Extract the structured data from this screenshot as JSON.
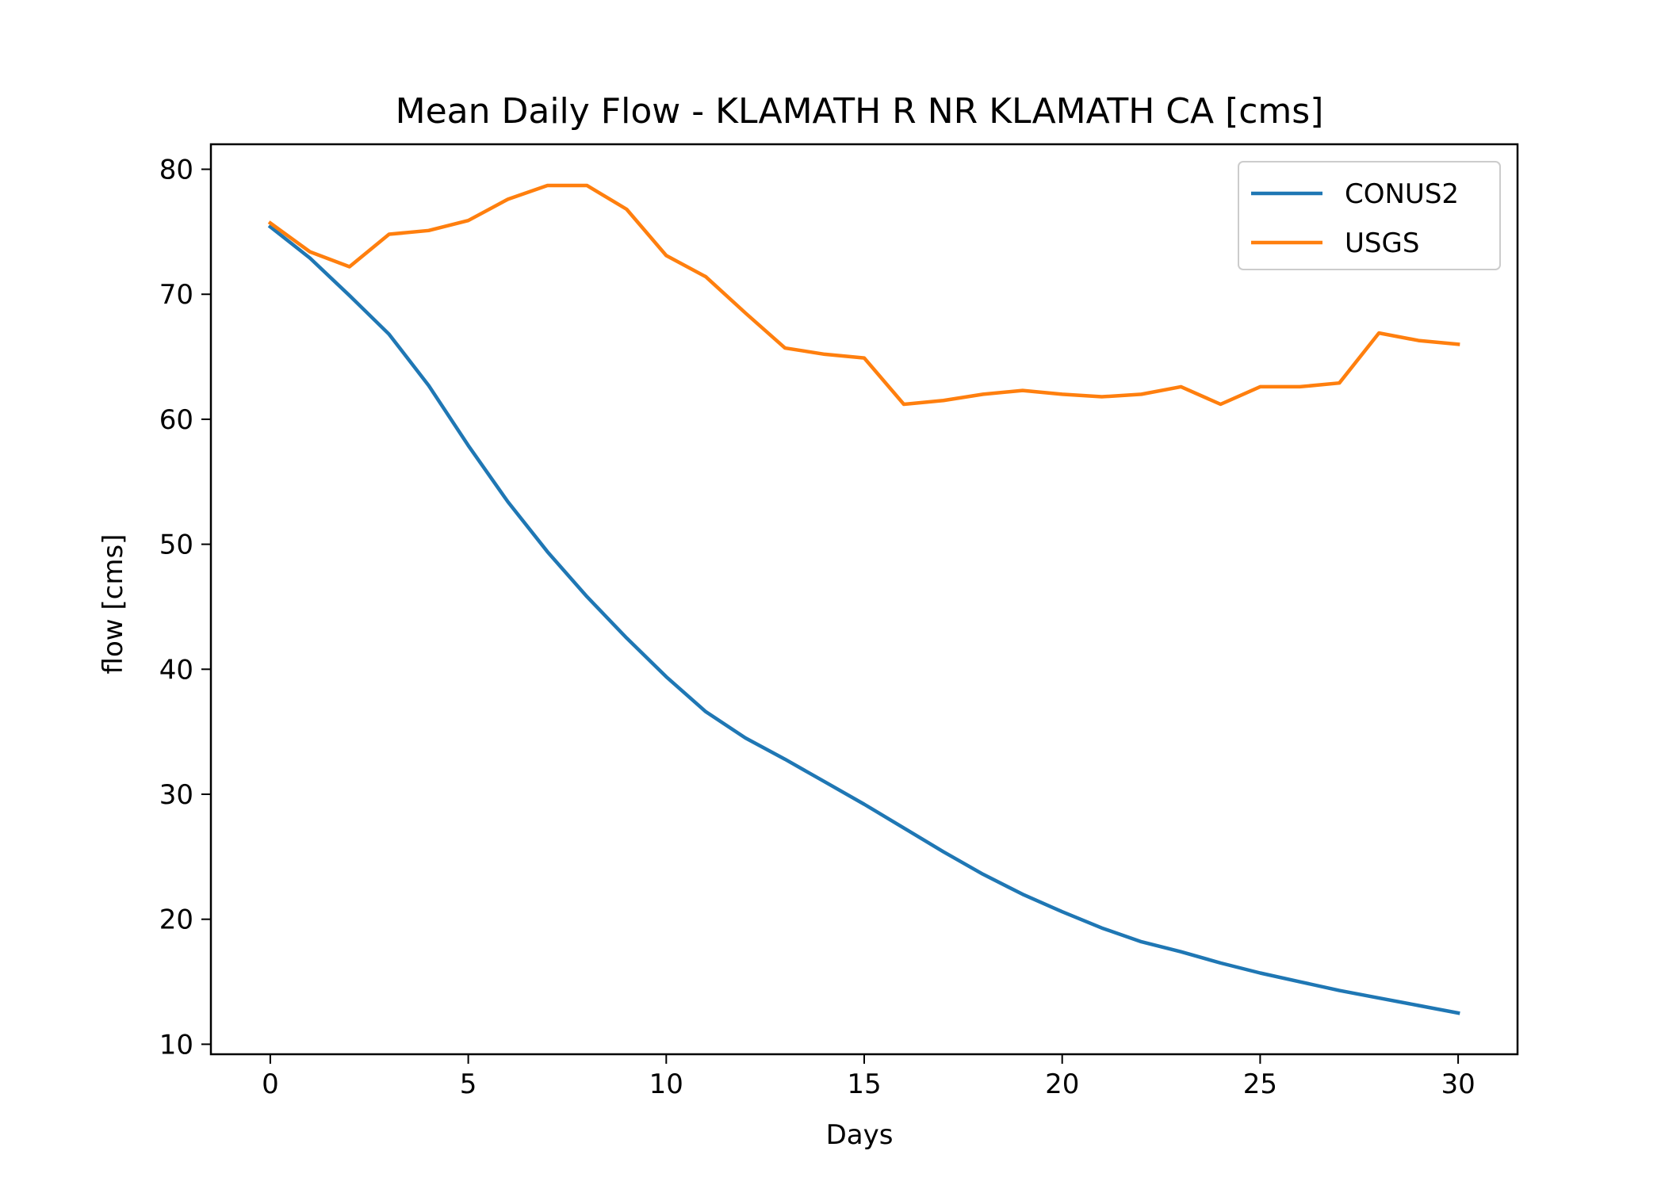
{
  "chart_data": {
    "type": "line",
    "title": "Mean Daily Flow - KLAMATH R NR KLAMATH CA [cms]",
    "xlabel": "Days",
    "ylabel": "flow [cms]",
    "xlim": [
      -1.5,
      31.5
    ],
    "ylim": [
      9.2,
      82.0
    ],
    "xticks": [
      0,
      5,
      10,
      15,
      20,
      25,
      30
    ],
    "yticks": [
      10,
      20,
      30,
      40,
      50,
      60,
      70,
      80
    ],
    "legend": "top-right",
    "grid": false,
    "x": [
      0,
      1,
      2,
      3,
      4,
      5,
      6,
      7,
      8,
      9,
      10,
      11,
      12,
      13,
      14,
      15,
      16,
      17,
      18,
      19,
      20,
      21,
      22,
      23,
      24,
      25,
      26,
      27,
      28,
      29,
      30
    ],
    "series": [
      {
        "name": "CONUS2",
        "color": "#1f77b4",
        "values": [
          75.4,
          72.9,
          69.9,
          66.8,
          62.7,
          57.9,
          53.4,
          49.4,
          45.8,
          42.5,
          39.4,
          36.6,
          34.5,
          32.8,
          31.0,
          29.2,
          27.3,
          25.4,
          23.6,
          22.0,
          20.6,
          19.3,
          18.2,
          17.4,
          16.5,
          15.7,
          15.0,
          14.3,
          13.7,
          13.1,
          12.5
        ]
      },
      {
        "name": "USGS",
        "color": "#ff7f0e",
        "values": [
          75.7,
          73.4,
          72.2,
          74.8,
          75.1,
          75.9,
          77.6,
          78.7,
          78.7,
          76.8,
          73.1,
          71.4,
          68.5,
          65.7,
          65.2,
          64.9,
          61.2,
          61.5,
          62.0,
          62.3,
          62.0,
          61.8,
          62.0,
          62.6,
          61.2,
          62.6,
          62.6,
          62.9,
          66.9,
          66.3,
          66.0
        ]
      }
    ]
  }
}
